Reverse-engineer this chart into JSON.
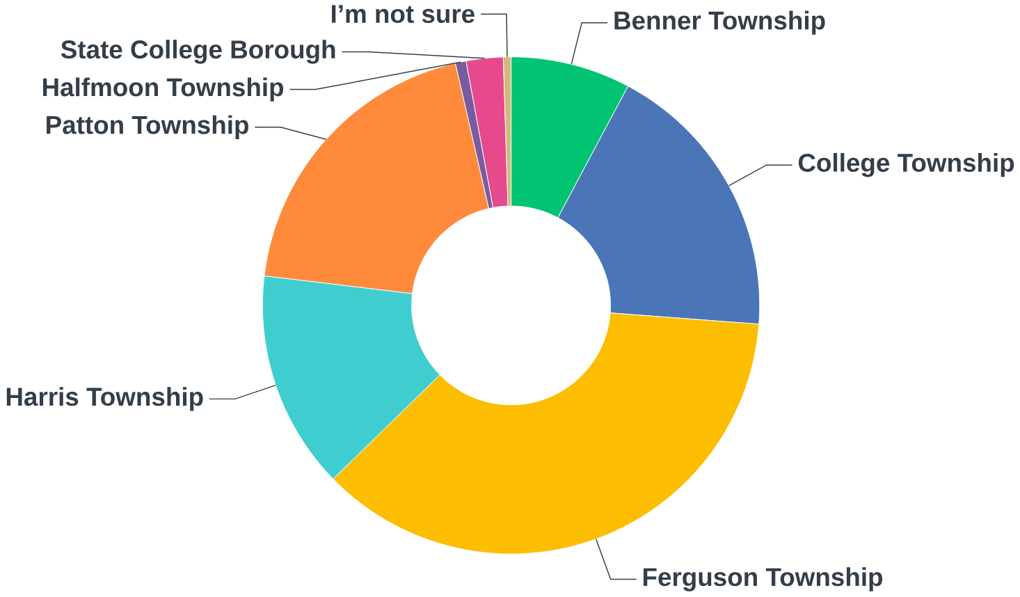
{
  "chart_data": {
    "type": "donut",
    "categories": [
      "Benner Township",
      "College Township",
      "Ferguson Township",
      "Harris Township",
      "Patton Township",
      "Halfmoon Township",
      "State College Borough",
      "I’m not sure"
    ],
    "values": [
      7.8,
      18.4,
      36.5,
      14.2,
      19.5,
      0.7,
      2.4,
      0.5
    ],
    "colors": [
      "#00c471",
      "#4a76b8",
      "#fdbd00",
      "#40cdd0",
      "#ff8a3c",
      "#7a5ba0",
      "#e6498c",
      "#d6b97a"
    ]
  }
}
